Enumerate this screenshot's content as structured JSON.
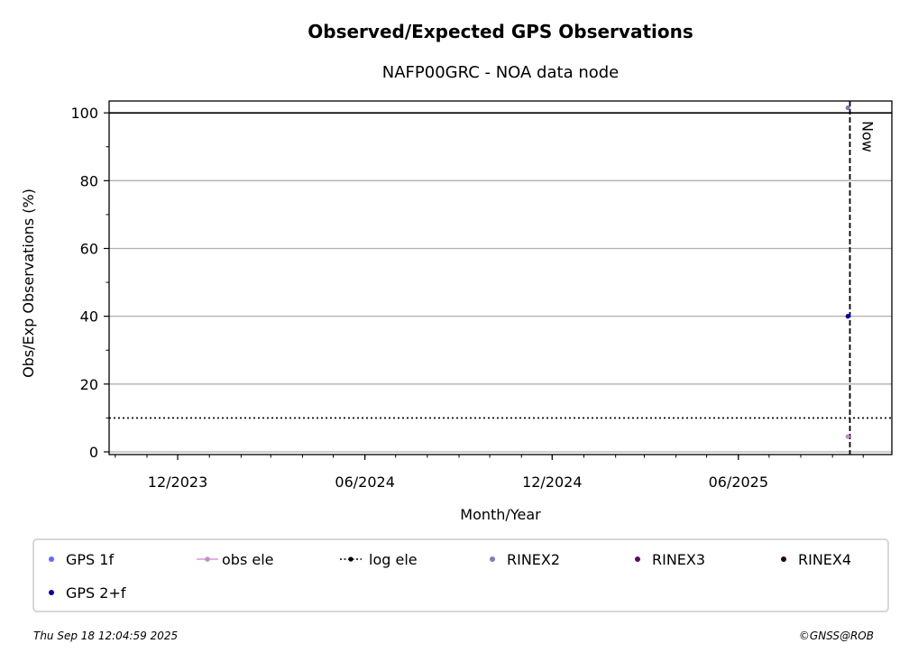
{
  "footer": {
    "timestamp": "Thu Sep 18 12:04:59 2025",
    "credit": "©GNSS@ROB"
  },
  "colors": {
    "gps_1f": "#6666ff",
    "gps_2f": "#0000aa",
    "obs_ele": "#cc88cc",
    "log_ele": "#000000",
    "rinex2": "#8877bb",
    "rinex3": "#660066",
    "rinex4": "#220022",
    "grid": "#b0b0b0"
  },
  "chart_data": {
    "type": "scatter",
    "title": "Observed/Expected GPS Observations",
    "subtitle": "NAFP00GRC - NOA data node",
    "xlabel": "Month/Year",
    "ylabel": "Obs/Exp Observations (%)",
    "x_ticks": [
      {
        "date": "2023-12-01",
        "label": "12/2023"
      },
      {
        "date": "2024-06-01",
        "label": "06/2024"
      },
      {
        "date": "2024-12-01",
        "label": "12/2024"
      },
      {
        "date": "2025-06-01",
        "label": "06/2025"
      }
    ],
    "x_range": [
      "2023-09-25",
      "2025-10-29"
    ],
    "ylim": [
      -0.8,
      103.5
    ],
    "y_ticks": [
      0,
      20,
      40,
      60,
      80,
      100
    ],
    "grid": "horizontal",
    "reference_lines": [
      {
        "y": 100,
        "style": "solid"
      },
      {
        "y": 10,
        "style": "dotted"
      }
    ],
    "now_marker": {
      "date": "2025-09-18",
      "label": "Now"
    },
    "series": [
      {
        "name": "GPS 1f",
        "points": []
      },
      {
        "name": "obs ele",
        "points": [
          {
            "x": "2025-09-16",
            "y": 4.5
          }
        ]
      },
      {
        "name": "log ele",
        "points": []
      },
      {
        "name": "RINEX2",
        "points": [
          {
            "x": "2025-09-16",
            "y": 101.5
          }
        ]
      },
      {
        "name": "RINEX3",
        "points": []
      },
      {
        "name": "RINEX4",
        "points": []
      },
      {
        "name": "GPS 2+f",
        "points": [
          {
            "x": "2025-09-16",
            "y": 40
          }
        ]
      }
    ],
    "legend": [
      {
        "label": "GPS 1f",
        "marker": "dot",
        "color": "#6666ff"
      },
      {
        "label": "obs ele",
        "marker": "line-dot",
        "color": "#cc88cc"
      },
      {
        "label": "log ele",
        "marker": "dotted-line-dot",
        "color": "#000000"
      },
      {
        "label": "RINEX2",
        "marker": "dot",
        "color": "#8877bb"
      },
      {
        "label": "RINEX3",
        "marker": "dot",
        "color": "#660066"
      },
      {
        "label": "RINEX4",
        "marker": "dot",
        "color": "#220022"
      },
      {
        "label": "GPS 2+f",
        "marker": "dot",
        "color": "#0000aa"
      }
    ],
    "legend_position": "bottom"
  }
}
